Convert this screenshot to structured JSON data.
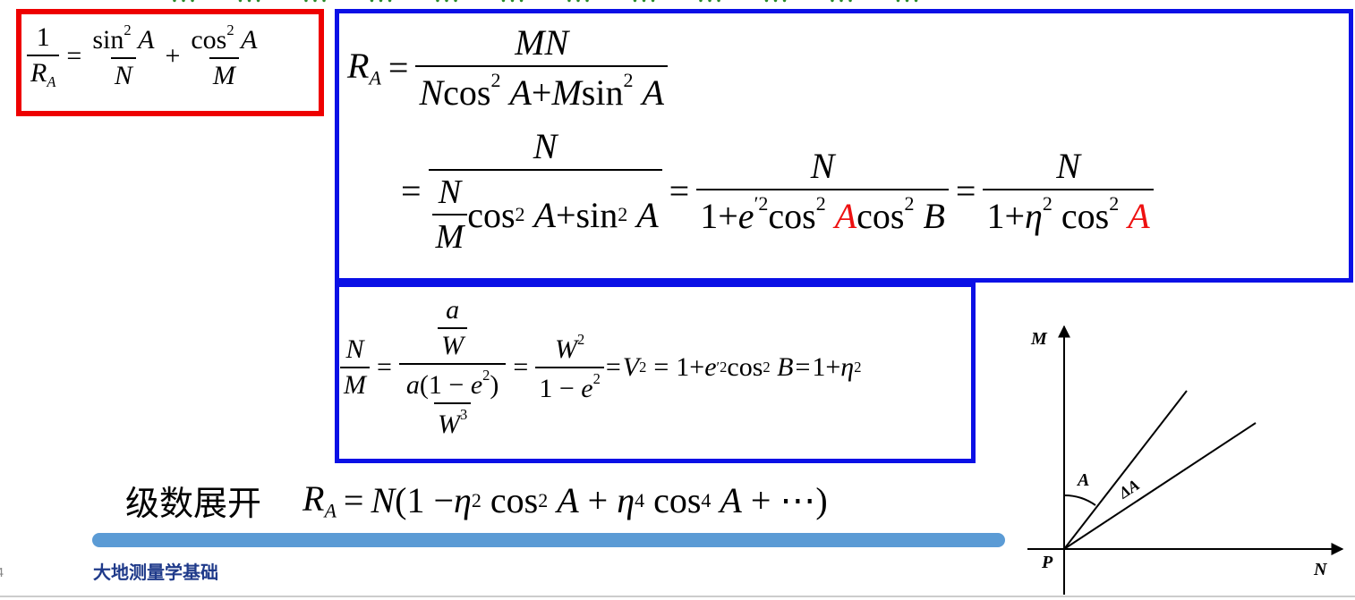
{
  "slide": {
    "top_partial_text": "… … … … … … … … … … … … … …",
    "footer_title": "大地测量学基础",
    "page_number": "4",
    "series_label": "级数展开"
  },
  "formula_red": {
    "one": "1",
    "R": "R",
    "A_sub": "A",
    "sin": "sin",
    "cos": "cos",
    "two": "2",
    "A": "A",
    "N": "N",
    "M": "M",
    "eq": "=",
    "plus": "+"
  },
  "formula_ra": {
    "R": "R",
    "A_sub": "A",
    "eq": "=",
    "num1": "MN",
    "N": "N",
    "M": "M",
    "cos": "cos",
    "sin": "sin",
    "two": "2",
    "A": "A",
    "plus": "+",
    "one": "1",
    "e": "e",
    "prime_two": "′2",
    "B": "B",
    "eta": "η"
  },
  "formula_nm": {
    "N": "N",
    "M": "M",
    "a": "a",
    "W": "W",
    "W2": "2",
    "W3": "3",
    "one_minus": "(1 − ",
    "e": "e",
    "e2": "2",
    "close": ")",
    "one": "1",
    "minus": "−",
    "eq": "=",
    "V": "V",
    "two": "2",
    "plus": "+",
    "prime_two": "′2",
    "cos": "cos",
    "B": "B",
    "eta": "η"
  },
  "formula_series": {
    "R": "R",
    "A_sub": "A",
    "eq": "=",
    "N": "N",
    "open": "(1 − ",
    "eta": "η",
    "two": "2",
    "four": "4",
    "cos": "cos",
    "A": "A",
    "plus": "+",
    "tail": "+ ⋯)"
  },
  "diagram": {
    "label_M": "M",
    "label_N": "N",
    "label_P": "P",
    "label_A": "A",
    "label_dA": "ΔA"
  }
}
